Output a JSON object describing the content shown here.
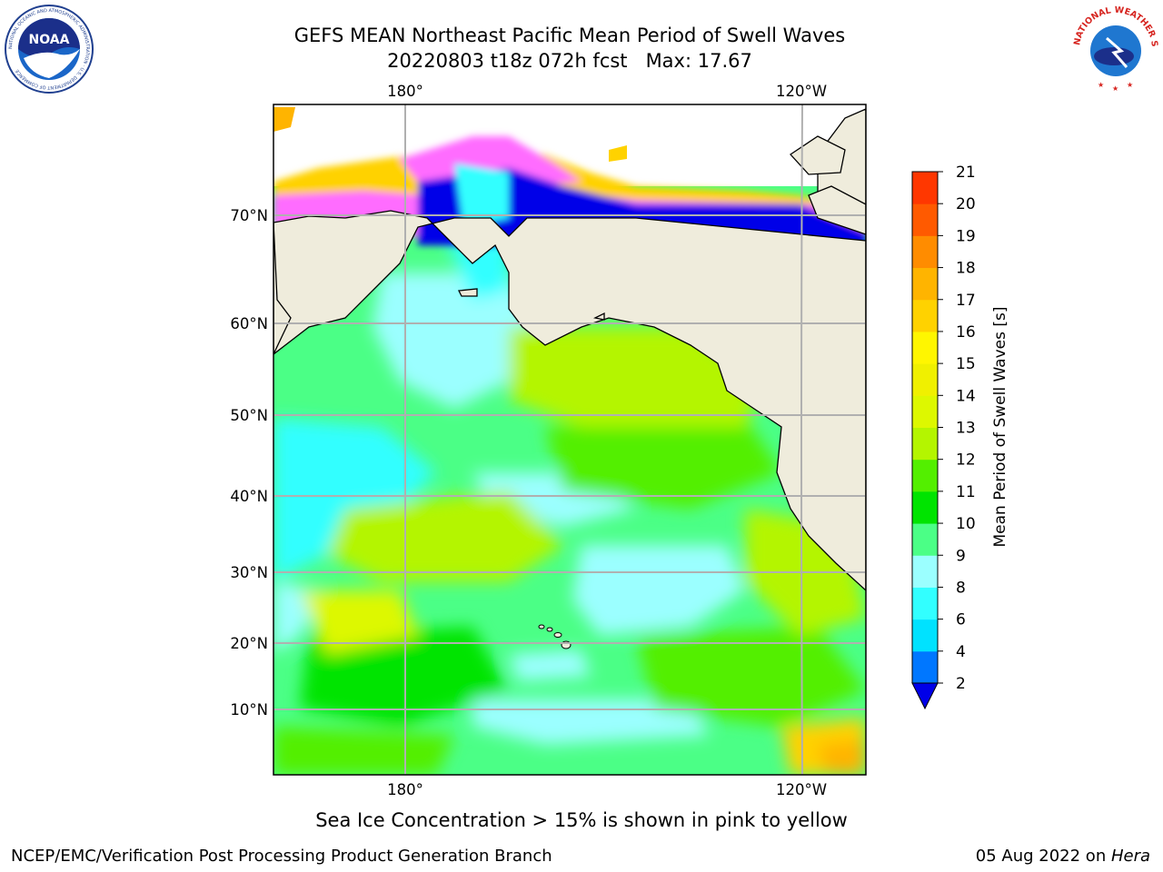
{
  "title_line1": "GEFS MEAN Northeast Pacific Mean Period of Swell Waves",
  "title_line2": "20220803 t18z 072h fcst   Max: 17.67",
  "logos": {
    "left": "noaa-logo",
    "left_ring_text": "NATIONAL OCEANIC AND ATMOSPHERIC ADMINISTRATION · U.S. DEPARTMENT OF COMMERCE",
    "left_center_text": "NOAA",
    "right": "national-weather-service-logo",
    "right_ring_text": "NATIONAL WEATHER SERVICE"
  },
  "map": {
    "top_lon_labels": [
      "180°",
      "120°W"
    ],
    "bottom_lon_labels": [
      "180°",
      "120°W"
    ],
    "lat_labels": [
      "70°N",
      "60°N",
      "50°N",
      "40°N",
      "30°N",
      "20°N",
      "10°N"
    ],
    "colors": {
      "land": "#efecdc",
      "grid": "#b0b0b0",
      "coast": "#000000"
    }
  },
  "colorbar": {
    "label": "Mean Period of Swell Waves [s]",
    "ticks": [
      "2",
      "4",
      "6",
      "8",
      "9",
      "10",
      "11",
      "12",
      "13",
      "14",
      "15",
      "16",
      "17",
      "18",
      "19",
      "20",
      "21"
    ],
    "colors": [
      "#0077ff",
      "#00e2ff",
      "#32ffff",
      "#9bffff",
      "#4bff86",
      "#00e400",
      "#53ef00",
      "#b4f500",
      "#ddf800",
      "#f0f000",
      "#fff600",
      "#ffd200",
      "#ffb400",
      "#ff8c00",
      "#ff5a00",
      "#ff3700",
      "#ff0000"
    ],
    "extend_color": "#0000e8"
  },
  "note": "Sea Ice Concentration > 15% is shown in pink to yellow",
  "footer_left": "NCEP/EMC/Verification Post Processing Product Generation Branch",
  "footer_date": "05 Aug 2022 on ",
  "footer_host": "Hera"
}
